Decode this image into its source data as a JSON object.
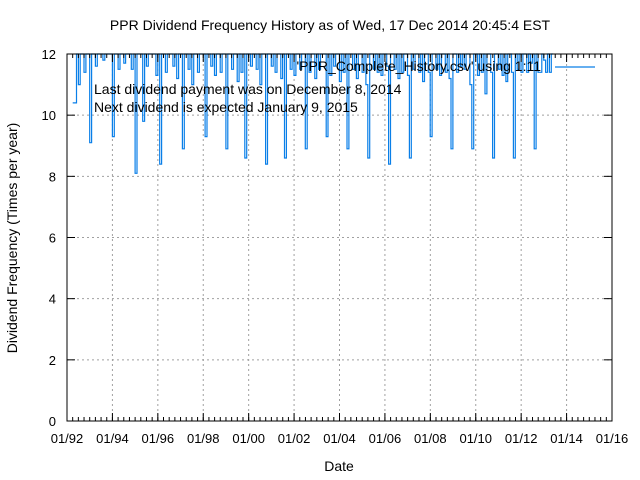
{
  "chart_data": {
    "type": "line",
    "title": "PPR Dividend Frequency History as of Wed, 17 Dec 2014 20:45:4 EST",
    "xlabel": "Date",
    "ylabel": "Dividend Frequency (Times per year)",
    "xlim": [
      1992.0,
      2016.0
    ],
    "ylim": [
      0,
      12
    ],
    "x_ticks": [
      {
        "value": 1992,
        "label": "01/92"
      },
      {
        "value": 1994,
        "label": "01/94"
      },
      {
        "value": 1996,
        "label": "01/96"
      },
      {
        "value": 1998,
        "label": "01/98"
      },
      {
        "value": 2000,
        "label": "01/00"
      },
      {
        "value": 2002,
        "label": "01/02"
      },
      {
        "value": 2004,
        "label": "01/04"
      },
      {
        "value": 2006,
        "label": "01/06"
      },
      {
        "value": 2008,
        "label": "01/08"
      },
      {
        "value": 2010,
        "label": "01/10"
      },
      {
        "value": 2012,
        "label": "01/12"
      },
      {
        "value": 2014,
        "label": "01/14"
      },
      {
        "value": 2016,
        "label": "01/16"
      }
    ],
    "y_ticks": [
      {
        "value": 0,
        "label": "0"
      },
      {
        "value": 2,
        "label": "2"
      },
      {
        "value": 4,
        "label": "4"
      },
      {
        "value": 6,
        "label": "6"
      },
      {
        "value": 8,
        "label": "8"
      },
      {
        "value": 10,
        "label": "10"
      },
      {
        "value": 12,
        "label": "12"
      }
    ],
    "grid": true,
    "legend": {
      "position": "top-right",
      "entries": [
        {
          "label": "'PPR_Complete_History.csv' using 1:11",
          "color": "#0a7fe8"
        }
      ]
    },
    "annotations": [
      "Last dividend payment was on December 8, 2014",
      "Next dividend is expected January 9, 2015"
    ],
    "series": [
      {
        "name": "'PPR_Complete_History.csv' using 1:11",
        "color": "#0a7fe8",
        "style": "steps",
        "start": 1992.25,
        "step": 0.0833,
        "values": [
          10.4,
          10.4,
          12,
          11.0,
          12,
          12,
          11.4,
          12,
          12,
          9.1,
          12,
          12,
          11.6,
          12,
          12,
          12,
          11.8,
          12,
          12,
          12,
          12,
          9.3,
          12,
          12,
          11.5,
          12,
          12,
          11.7,
          12,
          12,
          12,
          11.5,
          12,
          8.1,
          12,
          12,
          12,
          9.8,
          12,
          11.6,
          12,
          12,
          12,
          12,
          11.3,
          12,
          8.4,
          12,
          12,
          11.4,
          12,
          12,
          12,
          11.6,
          12,
          11.2,
          12,
          12,
          8.9,
          12,
          12,
          11.5,
          12,
          11.0,
          12,
          12,
          11.4,
          12,
          12,
          12,
          9.3,
          12,
          12,
          11.6,
          12,
          11.3,
          12,
          12,
          11.4,
          12,
          12,
          8.9,
          12,
          12,
          11.5,
          12,
          12,
          11.1,
          12,
          11.4,
          12,
          8.6,
          12,
          12,
          11.6,
          12,
          12,
          11.5,
          12,
          11.0,
          12,
          12,
          8.4,
          12,
          12,
          11.6,
          12,
          11.4,
          12,
          12,
          11.2,
          12,
          8.6,
          12,
          12,
          11.5,
          12,
          11.3,
          12,
          12,
          11.5,
          12,
          12,
          8.9,
          12,
          11.4,
          12,
          12,
          11.2,
          12,
          11.5,
          12,
          12,
          12,
          9.3,
          12,
          11.3,
          12,
          11.6,
          12,
          12,
          11.1,
          12,
          11.4,
          12,
          8.9,
          12,
          12,
          11.5,
          12,
          11.2,
          12,
          12,
          11.4,
          12,
          11.0,
          8.6,
          12,
          12,
          11.5,
          12,
          11.4,
          12,
          11.3,
          12,
          12,
          11.6,
          8.4,
          12,
          12,
          11.5,
          12,
          11.2,
          12,
          11.4,
          12,
          12,
          11.3,
          8.6,
          12,
          11.5,
          12,
          12,
          11.4,
          12,
          11.1,
          12,
          12,
          11.4,
          9.3,
          12,
          12,
          11.5,
          12,
          11.3,
          12,
          12,
          11.4,
          12,
          11.2,
          8.9,
          12,
          12,
          11.4,
          12,
          11.6,
          12,
          11.5,
          12,
          12,
          11.0,
          8.9,
          12,
          12,
          11.3,
          12,
          11.4,
          12,
          10.7,
          12,
          12,
          11.4,
          8.6,
          12,
          12,
          11.5,
          12,
          11.3,
          12,
          11.1,
          12,
          12,
          11.4,
          8.6,
          12,
          11.5,
          12,
          11.4,
          12,
          12,
          11.4,
          12,
          11.7,
          12,
          8.9,
          12,
          11.4,
          11.4,
          12,
          11.8,
          11.4,
          12,
          11.4,
          12
        ]
      }
    ]
  }
}
